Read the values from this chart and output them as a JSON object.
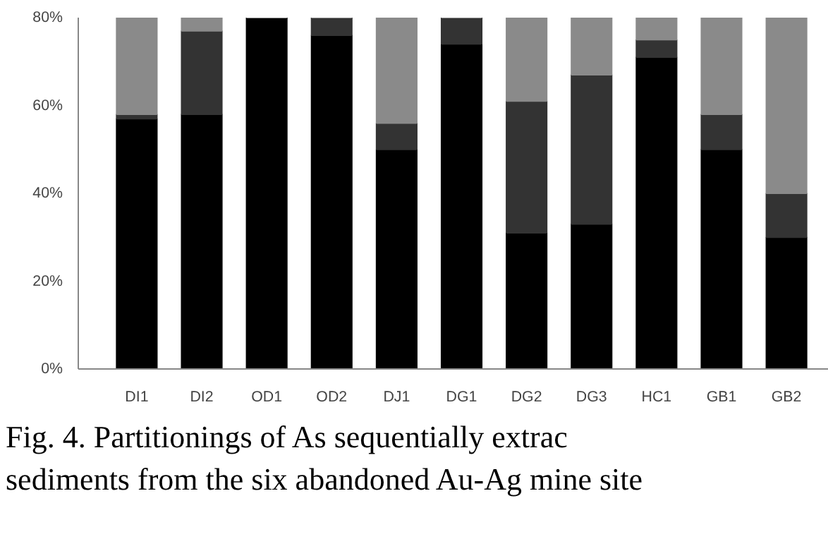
{
  "chart_data": {
    "type": "bar",
    "stacked": true,
    "categories": [
      "DI1",
      "DI2",
      "OD1",
      "OD2",
      "DJ1",
      "DG1",
      "DG2",
      "DG3",
      "HC1",
      "GB1",
      "GB2"
    ],
    "series": [
      {
        "color": "#000000",
        "values": [
          57,
          58,
          80,
          76,
          50,
          74,
          31,
          33,
          71,
          50,
          30
        ]
      },
      {
        "color": "#333333",
        "values": [
          1,
          19,
          0,
          4,
          6,
          6,
          30,
          34,
          4,
          8,
          10
        ]
      },
      {
        "color": "#8a8a8a",
        "values": [
          22,
          3,
          0,
          0,
          24,
          0,
          19,
          13,
          5,
          22,
          40
        ]
      }
    ],
    "ylim": [
      0,
      80
    ],
    "yticks": [
      {
        "value": 0,
        "label": "0%"
      },
      {
        "value": 20,
        "label": "20%"
      },
      {
        "value": 40,
        "label": "40%"
      },
      {
        "value": 60,
        "label": "60%"
      },
      {
        "value": 80,
        "label": "80%"
      }
    ],
    "grid": false,
    "annotations": [
      "Fig. 4. Partitionings of As sequentially extrac",
      "sediments from the six abandoned Au-Ag mine site"
    ]
  }
}
